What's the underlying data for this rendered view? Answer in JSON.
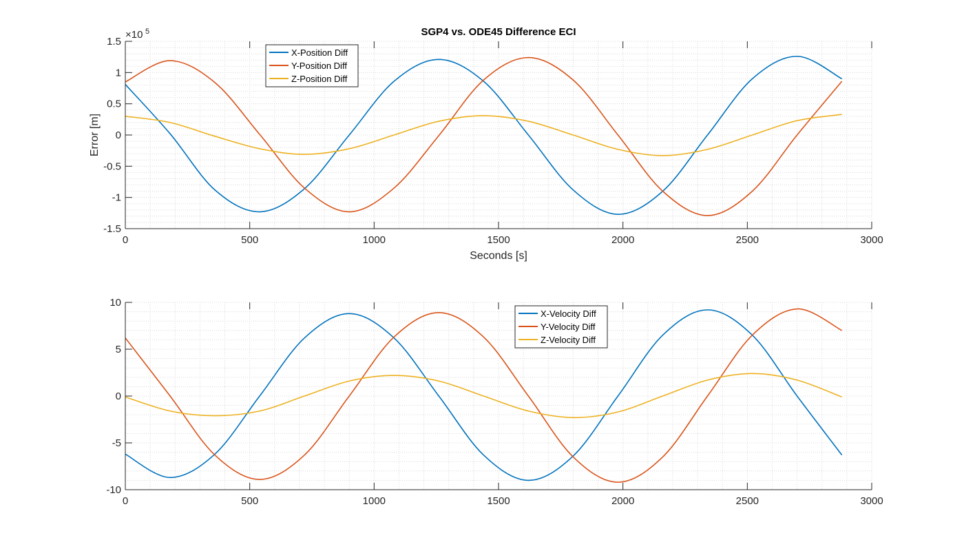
{
  "chart_data": [
    {
      "type": "line",
      "title": "SGP4 vs. ODE45 Difference ECI",
      "xlabel": "Seconds [s]",
      "ylabel": "Error [m]",
      "y_exponent_label": "×10",
      "y_exponent_power": "5",
      "xlim": [
        0,
        3000
      ],
      "ylim": [
        -1.5,
        1.5
      ],
      "x_ticks": [
        0,
        500,
        1000,
        1500,
        2000,
        2500,
        3000
      ],
      "x_tick_labels": [
        "0",
        "500",
        "1000",
        "1500",
        "2000",
        "2500",
        "3000"
      ],
      "y_ticks": [
        -1.5,
        -1,
        -0.5,
        0,
        0.5,
        1,
        1.5
      ],
      "y_tick_labels": [
        "-1.5",
        "-1",
        "-0.5",
        "0",
        "0.5",
        "1",
        "1.5"
      ],
      "grid": "minor-dotted",
      "legend_position": "top-left",
      "x": [
        0,
        180,
        360,
        540,
        720,
        900,
        1080,
        1260,
        1440,
        1620,
        1800,
        1980,
        2160,
        2340,
        2520,
        2700,
        2880
      ],
      "series": [
        {
          "name": "X-Position Diff",
          "color": "#0072BD",
          "values": [
            0.81,
            0.02,
            -0.88,
            -1.23,
            -0.86,
            0.0,
            0.86,
            1.21,
            0.86,
            0.0,
            -0.88,
            -1.27,
            -0.9,
            0.0,
            0.9,
            1.26,
            0.9
          ]
        },
        {
          "name": "Y-Position Diff",
          "color": "#D95319",
          "values": [
            0.85,
            1.19,
            0.84,
            0.01,
            -0.85,
            -1.23,
            -0.85,
            -0.01,
            0.88,
            1.24,
            0.88,
            0.0,
            -0.9,
            -1.29,
            -0.9,
            0.0,
            0.86
          ]
        },
        {
          "name": "Z-Position Diff",
          "color": "#EDB120",
          "values": [
            0.3,
            0.2,
            -0.02,
            -0.22,
            -0.31,
            -0.22,
            0.0,
            0.22,
            0.31,
            0.22,
            0.0,
            -0.23,
            -0.33,
            -0.23,
            0.0,
            0.23,
            0.33
          ]
        }
      ]
    },
    {
      "type": "line",
      "title": "",
      "xlabel": "",
      "ylabel": "",
      "xlim": [
        0,
        3000
      ],
      "ylim": [
        -10,
        10
      ],
      "x_ticks": [
        0,
        500,
        1000,
        1500,
        2000,
        2500,
        3000
      ],
      "x_tick_labels": [
        "0",
        "500",
        "1000",
        "1500",
        "2000",
        "2500",
        "3000"
      ],
      "y_ticks": [
        -10,
        -5,
        0,
        5,
        10
      ],
      "y_tick_labels": [
        "-10",
        "-5",
        "0",
        "5",
        "10"
      ],
      "grid": "minor-dotted",
      "legend_position": "top-center",
      "x": [
        0,
        180,
        360,
        540,
        720,
        900,
        1080,
        1260,
        1440,
        1620,
        1800,
        1980,
        2160,
        2340,
        2520,
        2700,
        2880
      ],
      "series": [
        {
          "name": "X-Velocity Diff",
          "color": "#0072BD",
          "values": [
            -6.2,
            -8.7,
            -6.2,
            0.0,
            6.2,
            8.8,
            6.2,
            0.0,
            -6.3,
            -9.0,
            -6.4,
            0.0,
            6.5,
            9.2,
            6.5,
            0.0,
            -6.3
          ]
        },
        {
          "name": "Y-Velocity Diff",
          "color": "#D95319",
          "values": [
            6.2,
            0.0,
            -6.3,
            -8.9,
            -6.3,
            0.0,
            6.3,
            8.9,
            6.3,
            0.0,
            -6.5,
            -9.2,
            -6.5,
            0.0,
            6.5,
            9.3,
            7.0
          ]
        },
        {
          "name": "Z-Velocity Diff",
          "color": "#EDB120",
          "values": [
            -0.1,
            -1.6,
            -2.1,
            -1.6,
            0.0,
            1.6,
            2.2,
            1.6,
            0.0,
            -1.6,
            -2.3,
            -1.7,
            0.0,
            1.7,
            2.4,
            1.7,
            -0.1
          ]
        }
      ]
    }
  ]
}
